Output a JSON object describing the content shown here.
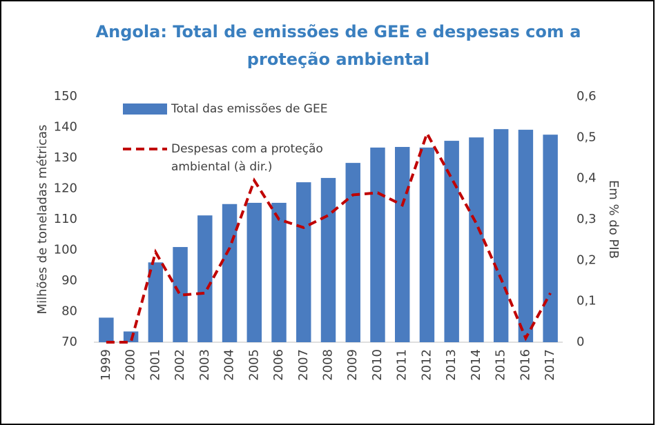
{
  "chart_data": {
    "type": "bar-line",
    "title": "Angola: Total de emissões de GEE e despesas com a proteção ambiental",
    "ylabel": "Milhões de toneladas métricas",
    "y2label": "Em % do PIB",
    "categories": [
      "1999",
      "2000",
      "2001",
      "2002",
      "2003",
      "2004",
      "2005",
      "2006",
      "2007",
      "2008",
      "2009",
      "2010",
      "2011",
      "2012",
      "2013",
      "2014",
      "2015",
      "2016",
      "2017"
    ],
    "series": [
      {
        "name": "Total das emissões de GEE",
        "type": "bar",
        "color": "#4a7cc0",
        "values": [
          78,
          73.5,
          96,
          101,
          111.3,
          115,
          115.4,
          115.4,
          122.1,
          123.5,
          128.4,
          133.4,
          133.6,
          133.4,
          135.6,
          136.7,
          139.4,
          139.2,
          137.6
        ]
      },
      {
        "name": "Despesas com a proteção ambiental (à dir.)",
        "type": "line",
        "axis": "y2",
        "color": "#c00000",
        "dashed": true,
        "values": [
          0,
          0,
          0.22,
          0.115,
          0.12,
          0.23,
          0.395,
          0.3,
          0.28,
          0.31,
          0.36,
          0.365,
          0.335,
          0.51,
          0.4,
          0.29,
          0.155,
          0.01,
          0.12
        ]
      }
    ],
    "ylim": [
      70,
      150
    ],
    "yticks": [
      70,
      80,
      90,
      100,
      110,
      120,
      130,
      140,
      150
    ],
    "y2lim": [
      0,
      0.6
    ],
    "y2ticks": [
      0,
      {
        "value": 0.1,
        "label": "0,1"
      },
      {
        "value": 0.2,
        "label": "0,2"
      },
      {
        "value": 0.3,
        "label": "0,3"
      },
      {
        "value": 0.4,
        "label": "0,4"
      },
      {
        "value": 0.5,
        "label": "0,5"
      },
      {
        "value": 0.6,
        "label": "0,6"
      }
    ],
    "grid": false
  }
}
